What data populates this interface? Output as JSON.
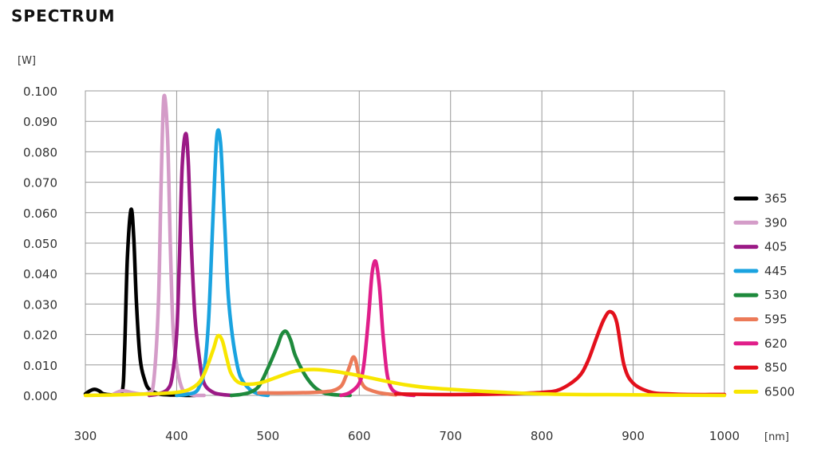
{
  "chart_data": {
    "type": "line",
    "title": "SPECTRUM",
    "ylabel": "[W]",
    "xlabel": "[nm]",
    "xlim": [
      300,
      1000
    ],
    "ylim": [
      0,
      0.1
    ],
    "x_ticks": [
      300,
      400,
      500,
      600,
      700,
      800,
      900,
      1000
    ],
    "y_ticks": [
      0.0,
      0.01,
      0.02,
      0.03,
      0.04,
      0.05,
      0.06,
      0.07,
      0.08,
      0.09,
      0.1
    ],
    "y_tick_labels": [
      "0.000",
      "0.010",
      "0.020",
      "0.030",
      "0.040",
      "0.050",
      "0.060",
      "0.070",
      "0.080",
      "0.090",
      "0.100"
    ],
    "x_tick_labels": [
      "300",
      "400",
      "500",
      "600",
      "700",
      "800",
      "900",
      "1000"
    ],
    "grid": true,
    "legend_position": "right",
    "series": [
      {
        "name": "365",
        "color": "#000000",
        "x": [
          300,
          305,
          310,
          315,
          320,
          330,
          340,
          343,
          346,
          350,
          353,
          356,
          360,
          365,
          370,
          380,
          390,
          400,
          410,
          420
        ],
        "y": [
          0.0005,
          0.0015,
          0.002,
          0.0015,
          0.0005,
          0.0002,
          0.0008,
          0.015,
          0.045,
          0.061,
          0.052,
          0.03,
          0.012,
          0.005,
          0.002,
          0.0005,
          0.0002,
          0.0001,
          0.0,
          0.0
        ]
      },
      {
        "name": "390",
        "color": "#d49cc8",
        "x": [
          330,
          340,
          350,
          360,
          370,
          375,
          380,
          383,
          386,
          390,
          393,
          396,
          400,
          405,
          410,
          420,
          430
        ],
        "y": [
          0.0003,
          0.0015,
          0.001,
          0.0005,
          0.001,
          0.005,
          0.03,
          0.07,
          0.098,
          0.085,
          0.05,
          0.022,
          0.01,
          0.003,
          0.001,
          0.0,
          0.0
        ]
      },
      {
        "name": "405",
        "color": "#9b1a86",
        "x": [
          370,
          380,
          390,
          395,
          400,
          403,
          406,
          410,
          413,
          416,
          420,
          425,
          430,
          440,
          450,
          460
        ],
        "y": [
          0.0,
          0.0005,
          0.002,
          0.006,
          0.02,
          0.045,
          0.075,
          0.086,
          0.075,
          0.05,
          0.026,
          0.012,
          0.004,
          0.001,
          0.0003,
          0.0
        ]
      },
      {
        "name": "445",
        "color": "#1aa3e0",
        "x": [
          400,
          410,
          420,
          425,
          430,
          435,
          440,
          444,
          448,
          452,
          456,
          460,
          465,
          470,
          480,
          490,
          500
        ],
        "y": [
          0.0,
          0.0003,
          0.001,
          0.003,
          0.008,
          0.025,
          0.06,
          0.085,
          0.083,
          0.06,
          0.035,
          0.022,
          0.012,
          0.006,
          0.002,
          0.0005,
          0.0
        ]
      },
      {
        "name": "530",
        "color": "#1e8a3c",
        "x": [
          460,
          470,
          480,
          490,
          500,
          510,
          515,
          520,
          525,
          530,
          540,
          550,
          560,
          570,
          580,
          590
        ],
        "y": [
          0.0,
          0.0003,
          0.001,
          0.003,
          0.009,
          0.016,
          0.02,
          0.021,
          0.018,
          0.013,
          0.007,
          0.003,
          0.001,
          0.0003,
          0.0001,
          0.0
        ]
      },
      {
        "name": "595",
        "color": "#ec7a58",
        "x": [
          490,
          520,
          550,
          570,
          580,
          585,
          590,
          593,
          596,
          600,
          605,
          610,
          620,
          630,
          640
        ],
        "y": [
          0.0008,
          0.0008,
          0.001,
          0.0015,
          0.003,
          0.006,
          0.01,
          0.0125,
          0.0115,
          0.006,
          0.003,
          0.002,
          0.001,
          0.0005,
          0.0002
        ]
      },
      {
        "name": "620",
        "color": "#e01e8a",
        "x": [
          580,
          590,
          600,
          605,
          610,
          614,
          618,
          622,
          626,
          630,
          634,
          640,
          650,
          660
        ],
        "y": [
          0.0,
          0.001,
          0.004,
          0.01,
          0.025,
          0.04,
          0.044,
          0.036,
          0.02,
          0.008,
          0.003,
          0.001,
          0.0003,
          0.0
        ]
      },
      {
        "name": "850",
        "color": "#e3101c",
        "x": [
          640,
          680,
          720,
          760,
          800,
          820,
          840,
          850,
          860,
          868,
          875,
          882,
          890,
          900,
          920,
          940,
          960,
          1000
        ],
        "y": [
          0.0005,
          0.0003,
          0.0003,
          0.0005,
          0.001,
          0.002,
          0.006,
          0.011,
          0.019,
          0.025,
          0.0275,
          0.024,
          0.01,
          0.004,
          0.001,
          0.0005,
          0.0003,
          0.0003
        ]
      },
      {
        "name": "6500",
        "color": "#f8e600",
        "x": [
          300,
          350,
          400,
          420,
          430,
          440,
          445,
          450,
          455,
          460,
          470,
          490,
          510,
          530,
          550,
          570,
          600,
          650,
          700,
          800,
          900,
          1000
        ],
        "y": [
          0.0,
          0.0003,
          0.001,
          0.003,
          0.007,
          0.015,
          0.0195,
          0.018,
          0.012,
          0.007,
          0.004,
          0.004,
          0.006,
          0.008,
          0.0085,
          0.008,
          0.0065,
          0.0035,
          0.002,
          0.0005,
          0.0002,
          0.0
        ]
      }
    ]
  }
}
